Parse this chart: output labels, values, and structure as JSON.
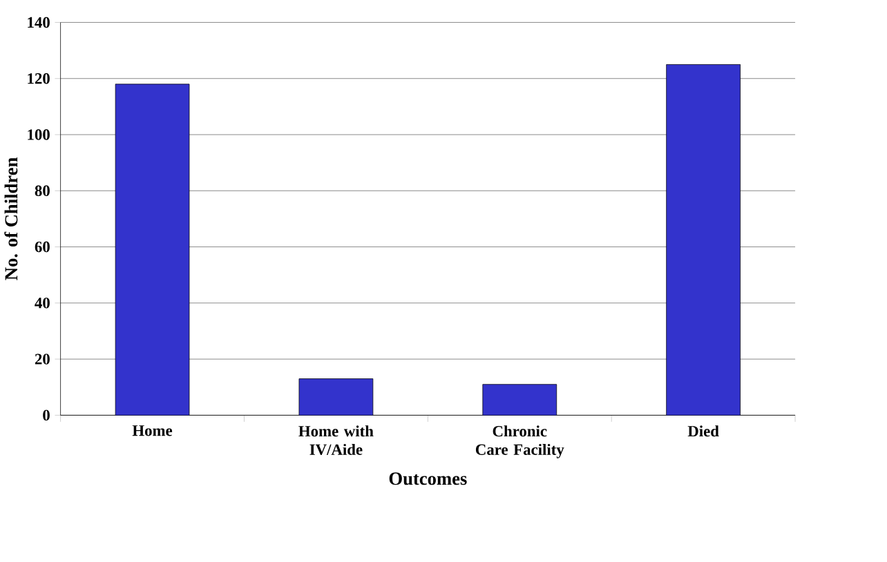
{
  "chart_data": {
    "type": "bar",
    "xlabel": "Outcomes",
    "ylabel": "No. of Children",
    "categories": [
      "Home",
      "Home with IV/Aide",
      "Chronic Care Facility",
      "Died"
    ],
    "values": [
      118,
      13,
      11,
      125
    ],
    "color": "#3333cc",
    "ylim": [
      0,
      140
    ],
    "yticks": [
      0,
      20,
      40,
      60,
      80,
      100,
      120,
      140
    ],
    "grid": "y"
  }
}
